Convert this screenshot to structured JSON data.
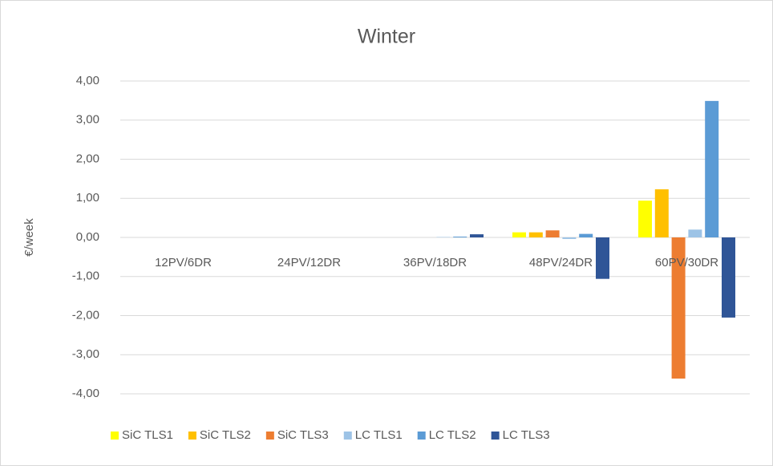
{
  "chart_data": {
    "type": "bar",
    "title": "Winter",
    "y_label": "€/week",
    "categories": [
      "12PV/6DR",
      "24PV/12DR",
      "36PV/18DR",
      "48PV/24DR",
      "60PV/30DR"
    ],
    "series": [
      {
        "name": "SiC TLS1",
        "color": "#ffff00",
        "values": [
          0,
          0,
          0,
          0.13,
          0.94
        ]
      },
      {
        "name": "SiC TLS2",
        "color": "#ffc000",
        "values": [
          0,
          0,
          0,
          0.13,
          1.23
        ]
      },
      {
        "name": "SiC TLS3",
        "color": "#ed7d31",
        "values": [
          0,
          0,
          0,
          0.18,
          -3.61
        ]
      },
      {
        "name": "LC TLS1",
        "color": "#9dc3e6",
        "values": [
          0,
          0,
          0.01,
          -0.04,
          0.2
        ]
      },
      {
        "name": "LC TLS2",
        "color": "#5b9bd5",
        "values": [
          0,
          0,
          0.02,
          0.09,
          3.49
        ]
      },
      {
        "name": "LC TLS3",
        "color": "#2f5597",
        "values": [
          0,
          0,
          0.08,
          -1.06,
          -2.05
        ]
      }
    ],
    "ylim": [
      -4,
      4
    ],
    "yticks": [
      {
        "value": -4,
        "label": "-4,00"
      },
      {
        "value": -3,
        "label": "-3,00"
      },
      {
        "value": -2,
        "label": "-2,00"
      },
      {
        "value": -1,
        "label": "-1,00"
      },
      {
        "value": 0,
        "label": "0,00"
      },
      {
        "value": 1,
        "label": "1,00"
      },
      {
        "value": 2,
        "label": "2,00"
      },
      {
        "value": 3,
        "label": "3,00"
      },
      {
        "value": 4,
        "label": "4,00"
      }
    ],
    "grid": true,
    "legend": "bottom"
  }
}
